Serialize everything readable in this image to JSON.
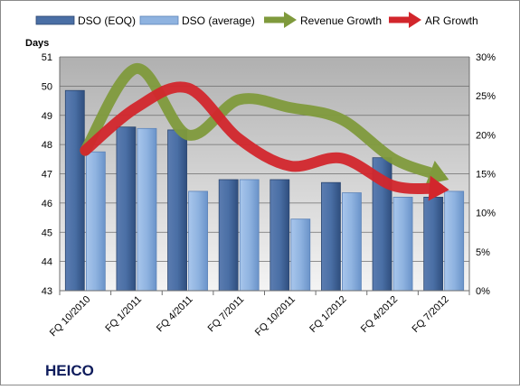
{
  "chart_data": {
    "type": "bar",
    "title": "",
    "company_label": "HEICO",
    "ylabel": "Days",
    "ylim": [
      43,
      51
    ],
    "y_ticks": [
      43,
      44,
      45,
      46,
      47,
      48,
      49,
      50,
      51
    ],
    "y2lim": [
      0,
      30
    ],
    "y2_ticks": [
      "0%",
      "5%",
      "10%",
      "15%",
      "20%",
      "25%",
      "30%"
    ],
    "grid": true,
    "legend_position": "top",
    "categories": [
      "FQ 10/2010",
      "FQ 1/2011",
      "FQ 4/2011",
      "FQ 7/2011",
      "FQ 10/2011",
      "FQ 1/2012",
      "FQ 4/2012",
      "FQ 7/2012"
    ],
    "series": [
      {
        "name": "DSO (EOQ)",
        "kind": "bar",
        "axis": "left",
        "color": "#4a6fa5",
        "values": [
          49.85,
          48.6,
          48.5,
          46.8,
          46.8,
          46.7,
          47.55,
          46.2
        ]
      },
      {
        "name": "DSO (average)",
        "kind": "bar",
        "axis": "left",
        "color": "#8fb3e0",
        "values": [
          47.75,
          48.55,
          46.4,
          46.8,
          45.45,
          46.35,
          46.2,
          46.4
        ]
      },
      {
        "name": "Revenue Growth",
        "kind": "line",
        "axis": "right",
        "color": "#7f9a3c",
        "values": [
          18,
          28.5,
          20,
          24.5,
          23.5,
          22,
          17,
          14.5
        ]
      },
      {
        "name": "AR Growth",
        "kind": "line",
        "axis": "right",
        "color": "#d2262c",
        "values": [
          18,
          23.5,
          26,
          19.5,
          16,
          17,
          13.5,
          13
        ]
      }
    ]
  }
}
